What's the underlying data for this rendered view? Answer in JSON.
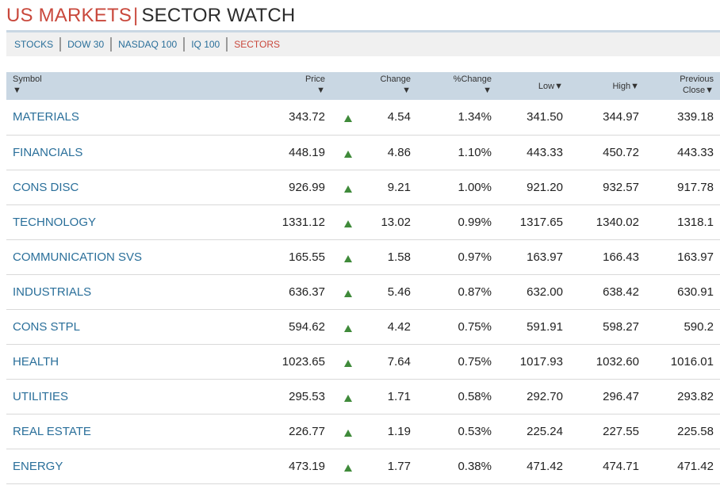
{
  "header": {
    "title_left": "US MARKETS",
    "separator": "|",
    "title_right": "SECTOR WATCH"
  },
  "tabs": [
    {
      "label": "STOCKS",
      "active": false
    },
    {
      "label": "DOW 30",
      "active": false
    },
    {
      "label": "NASDAQ 100",
      "active": false
    },
    {
      "label": "IQ 100",
      "active": false
    },
    {
      "label": "SECTORS",
      "active": true
    }
  ],
  "table": {
    "columns": {
      "symbol": "Symbol",
      "price": "Price",
      "change": "Change",
      "pct_change": "%Change",
      "low": "Low",
      "high": "High",
      "prev_close_1": "Previous",
      "prev_close_2": "Close"
    },
    "sort_glyph": "▼",
    "direction_icon": "up-triangle",
    "colors": {
      "link": "#2a6f9a",
      "up": "#3f8a3a",
      "header_bg": "#c9d7e3",
      "accent": "#c9483c"
    },
    "rows": [
      {
        "symbol": "MATERIALS",
        "price": "343.72",
        "change": "4.54",
        "pct": "1.34%",
        "low": "341.50",
        "high": "344.97",
        "prev": "339.18"
      },
      {
        "symbol": "FINANCIALS",
        "price": "448.19",
        "change": "4.86",
        "pct": "1.10%",
        "low": "443.33",
        "high": "450.72",
        "prev": "443.33"
      },
      {
        "symbol": "CONS DISC",
        "price": "926.99",
        "change": "9.21",
        "pct": "1.00%",
        "low": "921.20",
        "high": "932.57",
        "prev": "917.78"
      },
      {
        "symbol": "TECHNOLOGY",
        "price": "1331.12",
        "change": "13.02",
        "pct": "0.99%",
        "low": "1317.65",
        "high": "1340.02",
        "prev": "1318.1"
      },
      {
        "symbol": "COMMUNICATION SVS",
        "price": "165.55",
        "change": "1.58",
        "pct": "0.97%",
        "low": "163.97",
        "high": "166.43",
        "prev": "163.97"
      },
      {
        "symbol": "INDUSTRIALS",
        "price": "636.37",
        "change": "5.46",
        "pct": "0.87%",
        "low": "632.00",
        "high": "638.42",
        "prev": "630.91"
      },
      {
        "symbol": "CONS STPL",
        "price": "594.62",
        "change": "4.42",
        "pct": "0.75%",
        "low": "591.91",
        "high": "598.27",
        "prev": "590.2"
      },
      {
        "symbol": "HEALTH",
        "price": "1023.65",
        "change": "7.64",
        "pct": "0.75%",
        "low": "1017.93",
        "high": "1032.60",
        "prev": "1016.01"
      },
      {
        "symbol": "UTILITIES",
        "price": "295.53",
        "change": "1.71",
        "pct": "0.58%",
        "low": "292.70",
        "high": "296.47",
        "prev": "293.82"
      },
      {
        "symbol": "REAL ESTATE",
        "price": "226.77",
        "change": "1.19",
        "pct": "0.53%",
        "low": "225.24",
        "high": "227.55",
        "prev": "225.58"
      },
      {
        "symbol": "ENERGY",
        "price": "473.19",
        "change": "1.77",
        "pct": "0.38%",
        "low": "471.42",
        "high": "474.71",
        "prev": "471.42"
      }
    ]
  }
}
